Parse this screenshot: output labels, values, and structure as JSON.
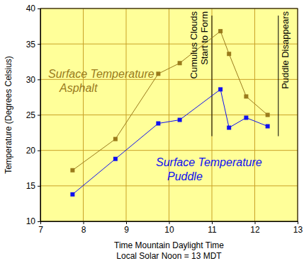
{
  "chart_data": {
    "type": "line",
    "x_label": [
      "Time Mountain Daylight Time",
      "Local Solar Noon = 13 MDT"
    ],
    "y_label": "Temperature (Degrees Celsius)",
    "x": [
      7.75,
      8.75,
      9.75,
      10.25,
      11.2,
      11.4,
      11.8,
      12.3
    ],
    "series": [
      {
        "name": "Surface Temperature Asphalt",
        "color": "#9a7b1c",
        "marker": "square",
        "values": [
          17.2,
          21.6,
          30.8,
          32.3,
          36.8,
          33.6,
          27.6,
          25.0
        ]
      },
      {
        "name": "Surface Temperature Puddle",
        "color": "#1010f0",
        "marker": "square",
        "values": [
          13.8,
          18.8,
          23.8,
          24.3,
          28.6,
          23.2,
          24.6,
          23.4
        ]
      }
    ],
    "xlim": [
      7,
      13
    ],
    "ylim": [
      10,
      40
    ],
    "xticks": [
      7,
      8,
      9,
      10,
      11,
      12,
      13
    ],
    "yticks": [
      10,
      15,
      20,
      25,
      30,
      35,
      40
    ],
    "grid": true,
    "annotations": [
      {
        "text": [
          "Cumulus Clouds",
          "Start to Form"
        ],
        "x": 11,
        "y": [
          22,
          39
        ]
      },
      {
        "text": [
          "Puddle Disappears"
        ],
        "x": 12.55,
        "y": [
          22,
          39
        ]
      }
    ]
  }
}
